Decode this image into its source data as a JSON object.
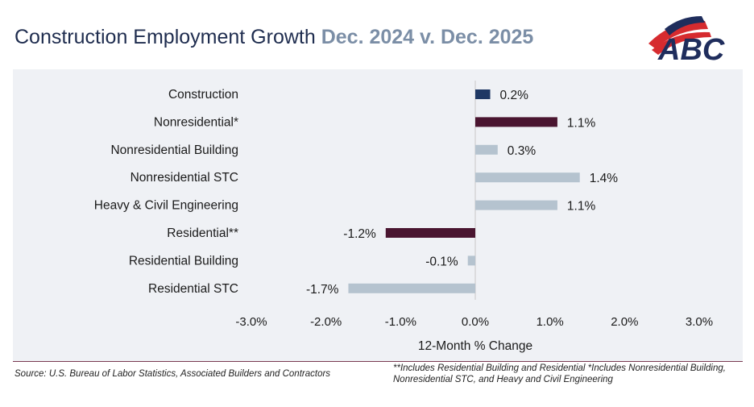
{
  "title": {
    "main": "Construction Employment Growth ",
    "highlight": "Dec. 2024 v. Dec. 2025"
  },
  "logo": {
    "text": "ABC"
  },
  "chart_data": {
    "type": "bar",
    "orientation": "horizontal",
    "categories": [
      "Construction",
      "Nonresidential*",
      "Nonresidential Building",
      "Nonresidential STC",
      "Heavy & Civil Engineering",
      "Residential**",
      "Residential Building",
      "Residential STC"
    ],
    "values": [
      0.2,
      1.1,
      0.3,
      1.4,
      1.1,
      -1.2,
      -0.1,
      -1.7
    ],
    "data_labels": [
      "0.2%",
      "1.1%",
      "0.3%",
      "1.4%",
      "1.1%",
      "-1.2%",
      "-0.1%",
      "-1.7%"
    ],
    "colors": [
      "#1f3864",
      "#4a1530",
      "#b5c3cf",
      "#b5c3cf",
      "#b5c3cf",
      "#4a1530",
      "#b5c3cf",
      "#b5c3cf"
    ],
    "xlabel": "12-Month % Change",
    "xlim": [
      -3.0,
      3.0
    ],
    "xticks": [
      -3,
      -2,
      -1,
      0,
      1,
      2,
      3
    ],
    "xtick_labels": [
      "-3.0%",
      "-2.0%",
      "-1.0%",
      "0.0%",
      "1.0%",
      "2.0%",
      "3.0%"
    ],
    "grid": false
  },
  "footer": {
    "source": "Source: U.S. Bureau of Labor Statistics, Associated Builders and Contractors",
    "note": "**Includes Residential Building and Residential *Includes Nonresidential Building, Nonresidential STC, and Heavy and Civil Engineering"
  }
}
